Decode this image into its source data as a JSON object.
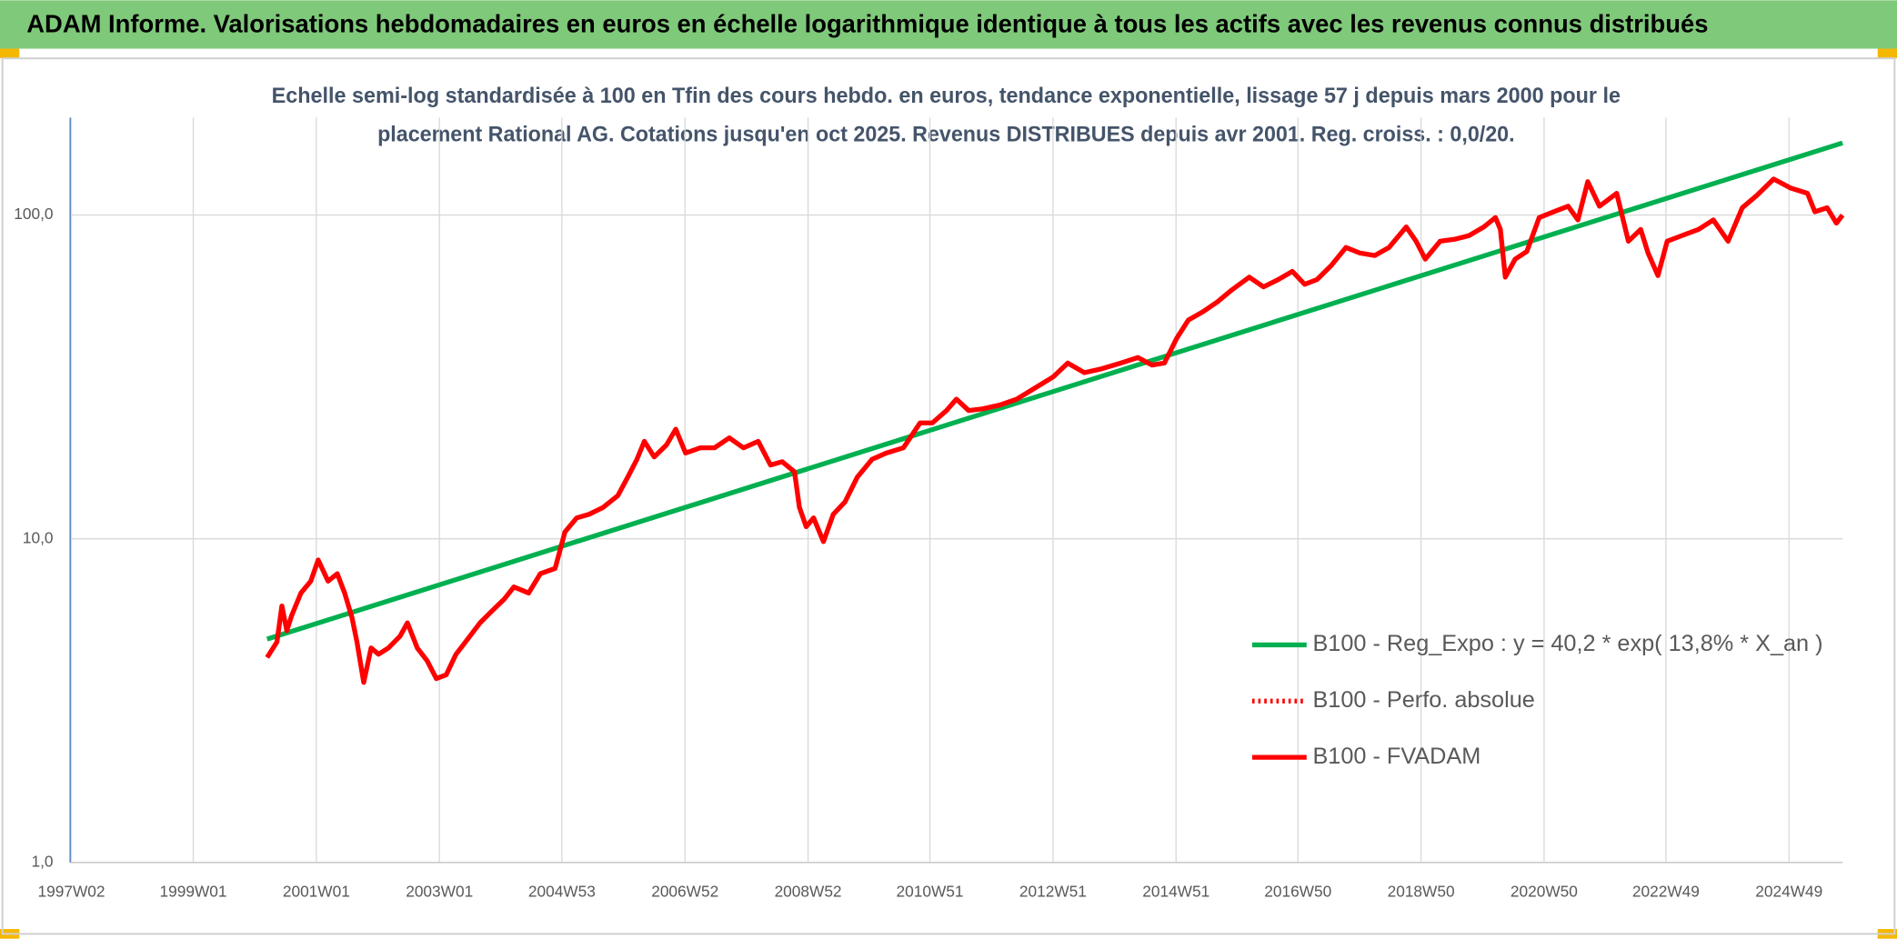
{
  "chart_data": {
    "type": "line",
    "title": "ADAM Informe. Valorisations hebdomadaires en euros en échelle logarithmique identique à tous les actifs avec les revenus connus distribués",
    "subtitle": [
      "Echelle semi-log standardisée à 100 en Tfin des cours hebdo. en euros, tendance exponentielle, lissage 57 j depuis mars 2000 pour le",
      "placement Rational AG. Cotations jusqu'en oct 2025. Revenus DISTRIBUES depuis avr 2001. Reg. croiss. : 0,0/20."
    ],
    "ylim": [
      1,
      200
    ],
    "log_y": true,
    "yticks": [
      {
        "value": 1,
        "label": "1,0"
      },
      {
        "value": 10,
        "label": "10,0"
      },
      {
        "value": 100,
        "label": "100,0"
      }
    ],
    "xlim": [
      1997.0,
      2025.8
    ],
    "xticks": [
      {
        "value": 1997.02,
        "label": "1997W02"
      },
      {
        "value": 1999.0,
        "label": "1999W01"
      },
      {
        "value": 2001.0,
        "label": "2001W01"
      },
      {
        "value": 2003.0,
        "label": "2003W01"
      },
      {
        "value": 2004.99,
        "label": "2004W53"
      },
      {
        "value": 2006.99,
        "label": "2006W52"
      },
      {
        "value": 2008.99,
        "label": "2008W52"
      },
      {
        "value": 2010.97,
        "label": "2010W51"
      },
      {
        "value": 2012.97,
        "label": "2012W51"
      },
      {
        "value": 2014.97,
        "label": "2014W51"
      },
      {
        "value": 2016.95,
        "label": "2016W50"
      },
      {
        "value": 2018.95,
        "label": "2018W50"
      },
      {
        "value": 2020.95,
        "label": "2020W50"
      },
      {
        "value": 2022.93,
        "label": "2022W49"
      },
      {
        "value": 2024.93,
        "label": "2024W49"
      }
    ],
    "grid": true,
    "legend_position": "center-right",
    "series": [
      {
        "name": "B100 - Reg_Expo : y = 40,2 * exp( 13,8% *  X_an )",
        "color": "#00b050",
        "style": "solid",
        "x": [
          2000.2,
          2025.8
        ],
        "values": [
          4.9,
          167
        ]
      },
      {
        "name": "B100 - Perfo. absolue",
        "color": "#ff0000",
        "style": "dotted",
        "x": [],
        "values": []
      },
      {
        "name": "B100 - FVADAM",
        "color": "#ff0000",
        "style": "solid",
        "x": [
          2000.2,
          2000.36,
          2000.44,
          2000.52,
          2000.6,
          2000.75,
          2000.91,
          2001.03,
          2001.19,
          2001.34,
          2001.46,
          2001.58,
          2001.66,
          2001.77,
          2001.89,
          2002.01,
          2002.17,
          2002.36,
          2002.48,
          2002.64,
          2002.8,
          2002.95,
          2003.11,
          2003.27,
          2003.46,
          2003.66,
          2003.86,
          2004.05,
          2004.21,
          2004.45,
          2004.64,
          2004.88,
          2005.04,
          2005.23,
          2005.43,
          2005.66,
          2005.9,
          2006.06,
          2006.21,
          2006.33,
          2006.49,
          2006.69,
          2006.84,
          2007.0,
          2007.24,
          2007.47,
          2007.71,
          2007.94,
          2008.18,
          2008.38,
          2008.57,
          2008.77,
          2008.85,
          2008.96,
          2009.08,
          2009.24,
          2009.4,
          2009.59,
          2009.79,
          2010.03,
          2010.26,
          2010.54,
          2010.81,
          2011.01,
          2011.24,
          2011.4,
          2011.6,
          2011.83,
          2012.11,
          2012.38,
          2012.7,
          2012.97,
          2013.21,
          2013.48,
          2013.76,
          2014.07,
          2014.35,
          2014.58,
          2014.78,
          2014.98,
          2015.17,
          2015.41,
          2015.64,
          2015.88,
          2016.16,
          2016.39,
          2016.63,
          2016.86,
          2017.06,
          2017.26,
          2017.49,
          2017.73,
          2017.96,
          2018.2,
          2018.43,
          2018.71,
          2018.87,
          2019.02,
          2019.26,
          2019.5,
          2019.73,
          2019.97,
          2020.16,
          2020.24,
          2020.32,
          2020.48,
          2020.67,
          2020.87,
          2021.11,
          2021.34,
          2021.5,
          2021.66,
          2021.85,
          2022.13,
          2022.32,
          2022.52,
          2022.64,
          2022.8,
          2022.95,
          2023.19,
          2023.46,
          2023.7,
          2023.94,
          2024.17,
          2024.41,
          2024.68,
          2024.96,
          2025.23,
          2025.35,
          2025.55,
          2025.7,
          2025.8
        ],
        "values": [
          4.3,
          4.8,
          6.2,
          5.2,
          5.8,
          6.8,
          7.4,
          8.6,
          7.4,
          7.8,
          6.8,
          5.7,
          4.8,
          3.6,
          4.6,
          4.4,
          4.6,
          5.0,
          5.5,
          4.6,
          4.2,
          3.7,
          3.8,
          4.4,
          4.9,
          5.5,
          6.0,
          6.5,
          7.1,
          6.8,
          7.8,
          8.1,
          10.5,
          11.6,
          11.9,
          12.5,
          13.6,
          15.5,
          17.6,
          20.0,
          17.9,
          19.5,
          21.8,
          18.4,
          19.1,
          19.1,
          20.5,
          19.1,
          20.0,
          16.9,
          17.3,
          16.1,
          12.5,
          10.9,
          11.6,
          9.8,
          11.9,
          13.0,
          15.5,
          17.6,
          18.4,
          19.1,
          22.8,
          22.8,
          24.9,
          27.0,
          24.9,
          25.2,
          25.9,
          27.0,
          29.4,
          31.6,
          34.9,
          32.6,
          33.5,
          34.9,
          36.3,
          34.4,
          34.9,
          41.6,
          47.4,
          50.3,
          53.9,
          58.8,
          64.3,
          60.0,
          63.2,
          67.0,
          61.1,
          63.2,
          69.8,
          79.4,
          76.3,
          75.0,
          79.4,
          91.9,
          83.0,
          73.1,
          83.0,
          84.2,
          86.4,
          91.9,
          98.2,
          90.3,
          64.3,
          73.1,
          77.2,
          98.2,
          102.4,
          106.5,
          96.6,
          126.8,
          106.5,
          116.7,
          83.0,
          90.3,
          76.3,
          65.0,
          83.0,
          86.4,
          90.3,
          96.6,
          83.0,
          105.3,
          115.1,
          129.2,
          121.1,
          116.7,
          102.4,
          105.3,
          94.4,
          100.0
        ]
      }
    ]
  }
}
